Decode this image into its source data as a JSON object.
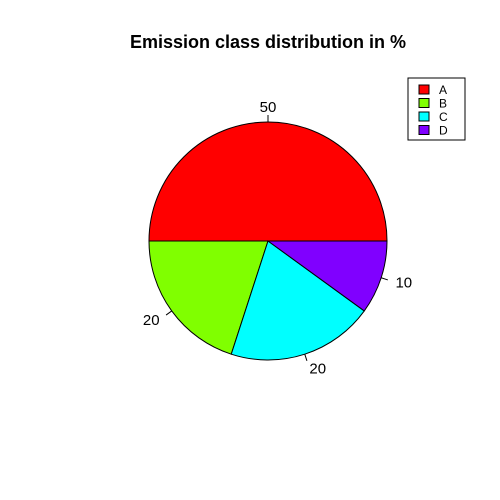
{
  "chart_data": {
    "type": "pie",
    "title": "Emission class distribution in %",
    "categories": [
      "A",
      "B",
      "C",
      "D"
    ],
    "values": [
      50,
      20,
      20,
      10
    ],
    "labels": [
      "50",
      "20",
      "20",
      "10"
    ],
    "colors": [
      "#FF0000",
      "#80FF00",
      "#00FFFF",
      "#8000FF"
    ],
    "start_angle_deg": 0,
    "direction": "counterclockwise",
    "legend_position": "top-right"
  }
}
